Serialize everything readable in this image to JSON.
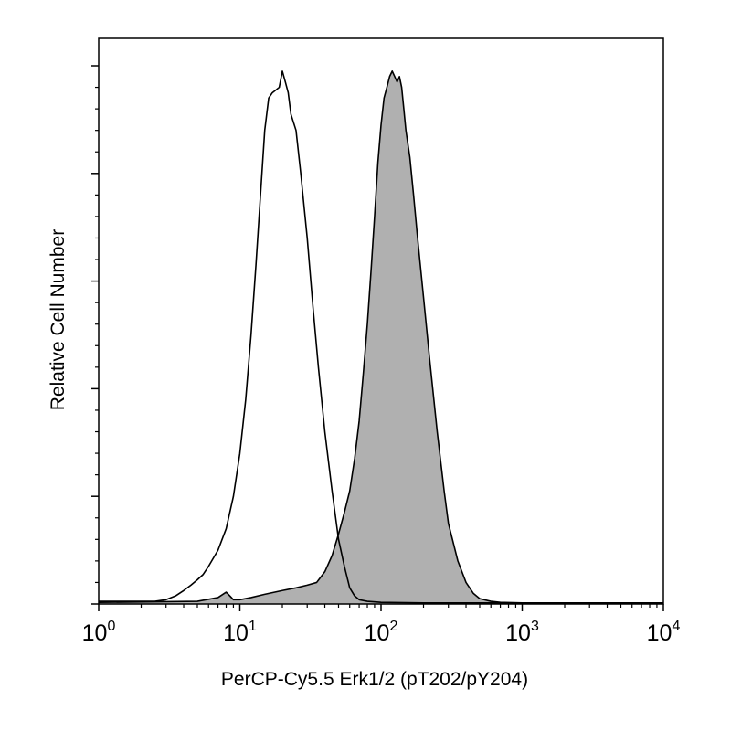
{
  "chart_data": {
    "type": "area",
    "xscale": "log",
    "xlim": [
      1,
      10000
    ],
    "ylim": [
      0,
      100
    ],
    "xlabel": "PerCP-Cy5.5 Erk1/2 (pT202/pY204)",
    "ylabel": "Relative Cell Number",
    "x_ticks": [
      {
        "base": "10",
        "exp": "0",
        "value": 1
      },
      {
        "base": "10",
        "exp": "1",
        "value": 10
      },
      {
        "base": "10",
        "exp": "2",
        "value": 100
      },
      {
        "base": "10",
        "exp": "3",
        "value": 1000
      },
      {
        "base": "10",
        "exp": "4",
        "value": 10000
      }
    ],
    "y_major_ticks": [
      0,
      20,
      40,
      60,
      80,
      100
    ],
    "grid": false,
    "legend": "none",
    "series": [
      {
        "style": "outline",
        "stroke": "#000000",
        "x": [
          1,
          1.5,
          2,
          2.5,
          3,
          3.5,
          4,
          4.5,
          5,
          5.5,
          6,
          7,
          8,
          9,
          10,
          11,
          12,
          13,
          14,
          15,
          16,
          17,
          18,
          19,
          20,
          21,
          22,
          23,
          25,
          27,
          30,
          33,
          36,
          40,
          45,
          50,
          55,
          60,
          65,
          70,
          80,
          100,
          200,
          1000,
          10000
        ],
        "y": [
          0.5,
          0.5,
          0.5,
          0.5,
          0.8,
          1.5,
          2.5,
          3.5,
          4.5,
          5.5,
          7,
          10,
          14,
          20,
          28,
          38,
          50,
          63,
          76,
          88,
          94,
          95,
          95.5,
          96,
          99,
          97,
          95,
          91,
          88,
          80,
          68,
          55,
          44,
          32,
          21,
          12,
          7,
          3,
          1.5,
          0.8,
          0.5,
          0.3,
          0.2,
          0.2,
          0.2
        ]
      },
      {
        "style": "filled",
        "fill": "#b0b0b0",
        "stroke": "#000000",
        "x": [
          1,
          5,
          7,
          8,
          8.5,
          9,
          10,
          12,
          15,
          20,
          25,
          30,
          35,
          40,
          45,
          50,
          55,
          60,
          65,
          70,
          75,
          80,
          85,
          90,
          95,
          100,
          105,
          110,
          115,
          120,
          125,
          130,
          135,
          140,
          145,
          150,
          160,
          170,
          180,
          200,
          220,
          250,
          280,
          300,
          350,
          400,
          450,
          500,
          600,
          700,
          1000,
          10000
        ],
        "y": [
          0.3,
          0.5,
          1.2,
          2.2,
          1.5,
          0.8,
          0.8,
          1.2,
          1.8,
          2.5,
          3,
          3.5,
          4,
          6,
          9,
          13,
          17,
          21,
          27,
          34,
          43,
          52,
          62,
          72,
          82,
          89,
          94,
          96,
          98,
          99,
          98,
          97,
          98,
          96,
          92,
          88,
          83,
          76,
          69,
          57,
          46,
          32,
          21,
          15,
          8,
          4,
          2,
          1,
          0.5,
          0.3,
          0.2,
          0.2
        ]
      }
    ]
  }
}
